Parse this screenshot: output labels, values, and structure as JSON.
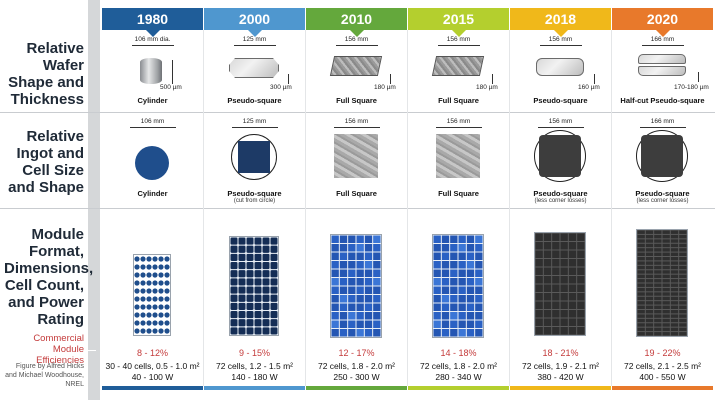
{
  "row_labels": {
    "wafer": "Relative Wafer Shape and Thickness",
    "ingot": "Relative Ingot and Cell Size and Shape",
    "module": "Module Format, Dimensions, Cell Count, and Power Rating",
    "efficiency": "Commercial Module Efficiencies",
    "credit": "Figure by Alfred Hicks and Michael Woodhouse, NREL"
  },
  "colors": {
    "c1980": "#1f5d99",
    "c2000": "#4f97cf",
    "c2010": "#64a83c",
    "c2015": "#b4cf2e",
    "c2018": "#f0b81a",
    "c2020": "#e8792b",
    "efficiency_red": "#c43b3b"
  },
  "columns": [
    {
      "year": "1980",
      "wafer_dim": "106 mm dia.",
      "wafer_thick": "500 µm",
      "wafer_caption": "Cylinder",
      "ingot_dim": "106 mm",
      "ingot_caption": "Cylinder",
      "ingot_sub": "",
      "efficiency": "8 - 12%",
      "spec1": "30 - 40 cells, 0.5 - 1.0 m²",
      "spec2": "40 - 100 W"
    },
    {
      "year": "2000",
      "wafer_dim": "125 mm",
      "wafer_thick": "300 µm",
      "wafer_caption": "Pseudo-square",
      "ingot_dim": "125 mm",
      "ingot_caption": "Pseudo-square",
      "ingot_sub": "(cut from circle)",
      "efficiency": "9 - 15%",
      "spec1": "72 cells, 1.2 - 1.5 m²",
      "spec2": "140 - 180 W"
    },
    {
      "year": "2010",
      "wafer_dim": "156 mm",
      "wafer_thick": "180 µm",
      "wafer_caption": "Full Square",
      "ingot_dim": "156 mm",
      "ingot_caption": "Full Square",
      "ingot_sub": "",
      "efficiency": "12 - 17%",
      "spec1": "72 cells, 1.8 - 2.0 m²",
      "spec2": "250 - 300 W"
    },
    {
      "year": "2015",
      "wafer_dim": "156 mm",
      "wafer_thick": "180 µm",
      "wafer_caption": "Full Square",
      "ingot_dim": "156 mm",
      "ingot_caption": "Full Square",
      "ingot_sub": "",
      "efficiency": "14 - 18%",
      "spec1": "72 cells, 1.8 - 2.0 m²",
      "spec2": "280 - 340 W"
    },
    {
      "year": "2018",
      "wafer_dim": "156 mm",
      "wafer_thick": "160 µm",
      "wafer_caption": "Pseudo-square",
      "ingot_dim": "156 mm",
      "ingot_caption": "Pseudo-square",
      "ingot_sub": "(less corner losses)",
      "efficiency": "18 - 21%",
      "spec1": "72 cells, 1.9 - 2.1 m²",
      "spec2": "380 - 420 W"
    },
    {
      "year": "2020",
      "wafer_dim": "166 mm",
      "wafer_thick": "170-180 µm",
      "wafer_caption": "Half-cut Pseudo-square",
      "ingot_dim": "166 mm",
      "ingot_caption": "Pseudo-square",
      "ingot_sub": "(less corner losses)",
      "efficiency": "19 - 22%",
      "spec1": "72 cells, 2.1 - 2.5 m²",
      "spec2": "400 - 550 W"
    }
  ]
}
